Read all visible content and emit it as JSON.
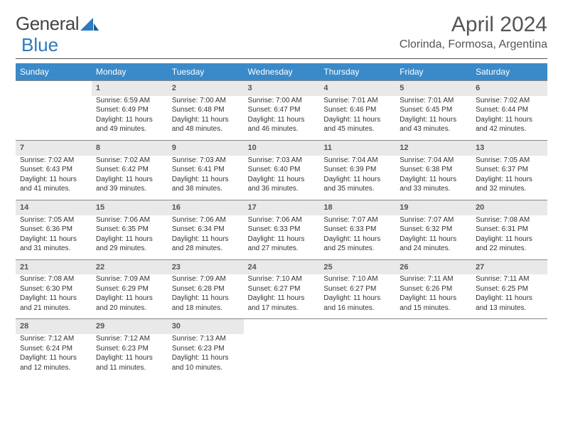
{
  "brand": {
    "part1": "General",
    "part2": "Blue"
  },
  "title": "April 2024",
  "location": "Clorinda, Formosa, Argentina",
  "colors": {
    "header_bg": "#3a8ac9",
    "header_text": "#ffffff",
    "daynum_bg": "#e9e9e9",
    "logo_gray": "#444444",
    "logo_blue": "#2b7bbf",
    "text": "#333333",
    "rule": "#555555"
  },
  "typography": {
    "title_fontsize": 30,
    "location_fontsize": 16,
    "dayheader_fontsize": 12,
    "daynum_fontsize": 11,
    "body_fontsize": 10
  },
  "day_headers": [
    "Sunday",
    "Monday",
    "Tuesday",
    "Wednesday",
    "Thursday",
    "Friday",
    "Saturday"
  ],
  "weeks": [
    {
      "days": [
        null,
        {
          "n": "1",
          "sunrise": "Sunrise: 6:59 AM",
          "sunset": "Sunset: 6:49 PM",
          "daylight": "Daylight: 11 hours and 49 minutes."
        },
        {
          "n": "2",
          "sunrise": "Sunrise: 7:00 AM",
          "sunset": "Sunset: 6:48 PM",
          "daylight": "Daylight: 11 hours and 48 minutes."
        },
        {
          "n": "3",
          "sunrise": "Sunrise: 7:00 AM",
          "sunset": "Sunset: 6:47 PM",
          "daylight": "Daylight: 11 hours and 46 minutes."
        },
        {
          "n": "4",
          "sunrise": "Sunrise: 7:01 AM",
          "sunset": "Sunset: 6:46 PM",
          "daylight": "Daylight: 11 hours and 45 minutes."
        },
        {
          "n": "5",
          "sunrise": "Sunrise: 7:01 AM",
          "sunset": "Sunset: 6:45 PM",
          "daylight": "Daylight: 11 hours and 43 minutes."
        },
        {
          "n": "6",
          "sunrise": "Sunrise: 7:02 AM",
          "sunset": "Sunset: 6:44 PM",
          "daylight": "Daylight: 11 hours and 42 minutes."
        }
      ]
    },
    {
      "days": [
        {
          "n": "7",
          "sunrise": "Sunrise: 7:02 AM",
          "sunset": "Sunset: 6:43 PM",
          "daylight": "Daylight: 11 hours and 41 minutes."
        },
        {
          "n": "8",
          "sunrise": "Sunrise: 7:02 AM",
          "sunset": "Sunset: 6:42 PM",
          "daylight": "Daylight: 11 hours and 39 minutes."
        },
        {
          "n": "9",
          "sunrise": "Sunrise: 7:03 AM",
          "sunset": "Sunset: 6:41 PM",
          "daylight": "Daylight: 11 hours and 38 minutes."
        },
        {
          "n": "10",
          "sunrise": "Sunrise: 7:03 AM",
          "sunset": "Sunset: 6:40 PM",
          "daylight": "Daylight: 11 hours and 36 minutes."
        },
        {
          "n": "11",
          "sunrise": "Sunrise: 7:04 AM",
          "sunset": "Sunset: 6:39 PM",
          "daylight": "Daylight: 11 hours and 35 minutes."
        },
        {
          "n": "12",
          "sunrise": "Sunrise: 7:04 AM",
          "sunset": "Sunset: 6:38 PM",
          "daylight": "Daylight: 11 hours and 33 minutes."
        },
        {
          "n": "13",
          "sunrise": "Sunrise: 7:05 AM",
          "sunset": "Sunset: 6:37 PM",
          "daylight": "Daylight: 11 hours and 32 minutes."
        }
      ]
    },
    {
      "days": [
        {
          "n": "14",
          "sunrise": "Sunrise: 7:05 AM",
          "sunset": "Sunset: 6:36 PM",
          "daylight": "Daylight: 11 hours and 31 minutes."
        },
        {
          "n": "15",
          "sunrise": "Sunrise: 7:06 AM",
          "sunset": "Sunset: 6:35 PM",
          "daylight": "Daylight: 11 hours and 29 minutes."
        },
        {
          "n": "16",
          "sunrise": "Sunrise: 7:06 AM",
          "sunset": "Sunset: 6:34 PM",
          "daylight": "Daylight: 11 hours and 28 minutes."
        },
        {
          "n": "17",
          "sunrise": "Sunrise: 7:06 AM",
          "sunset": "Sunset: 6:33 PM",
          "daylight": "Daylight: 11 hours and 27 minutes."
        },
        {
          "n": "18",
          "sunrise": "Sunrise: 7:07 AM",
          "sunset": "Sunset: 6:33 PM",
          "daylight": "Daylight: 11 hours and 25 minutes."
        },
        {
          "n": "19",
          "sunrise": "Sunrise: 7:07 AM",
          "sunset": "Sunset: 6:32 PM",
          "daylight": "Daylight: 11 hours and 24 minutes."
        },
        {
          "n": "20",
          "sunrise": "Sunrise: 7:08 AM",
          "sunset": "Sunset: 6:31 PM",
          "daylight": "Daylight: 11 hours and 22 minutes."
        }
      ]
    },
    {
      "days": [
        {
          "n": "21",
          "sunrise": "Sunrise: 7:08 AM",
          "sunset": "Sunset: 6:30 PM",
          "daylight": "Daylight: 11 hours and 21 minutes."
        },
        {
          "n": "22",
          "sunrise": "Sunrise: 7:09 AM",
          "sunset": "Sunset: 6:29 PM",
          "daylight": "Daylight: 11 hours and 20 minutes."
        },
        {
          "n": "23",
          "sunrise": "Sunrise: 7:09 AM",
          "sunset": "Sunset: 6:28 PM",
          "daylight": "Daylight: 11 hours and 18 minutes."
        },
        {
          "n": "24",
          "sunrise": "Sunrise: 7:10 AM",
          "sunset": "Sunset: 6:27 PM",
          "daylight": "Daylight: 11 hours and 17 minutes."
        },
        {
          "n": "25",
          "sunrise": "Sunrise: 7:10 AM",
          "sunset": "Sunset: 6:27 PM",
          "daylight": "Daylight: 11 hours and 16 minutes."
        },
        {
          "n": "26",
          "sunrise": "Sunrise: 7:11 AM",
          "sunset": "Sunset: 6:26 PM",
          "daylight": "Daylight: 11 hours and 15 minutes."
        },
        {
          "n": "27",
          "sunrise": "Sunrise: 7:11 AM",
          "sunset": "Sunset: 6:25 PM",
          "daylight": "Daylight: 11 hours and 13 minutes."
        }
      ]
    },
    {
      "days": [
        {
          "n": "28",
          "sunrise": "Sunrise: 7:12 AM",
          "sunset": "Sunset: 6:24 PM",
          "daylight": "Daylight: 11 hours and 12 minutes."
        },
        {
          "n": "29",
          "sunrise": "Sunrise: 7:12 AM",
          "sunset": "Sunset: 6:23 PM",
          "daylight": "Daylight: 11 hours and 11 minutes."
        },
        {
          "n": "30",
          "sunrise": "Sunrise: 7:13 AM",
          "sunset": "Sunset: 6:23 PM",
          "daylight": "Daylight: 11 hours and 10 minutes."
        },
        null,
        null,
        null,
        null
      ]
    }
  ]
}
